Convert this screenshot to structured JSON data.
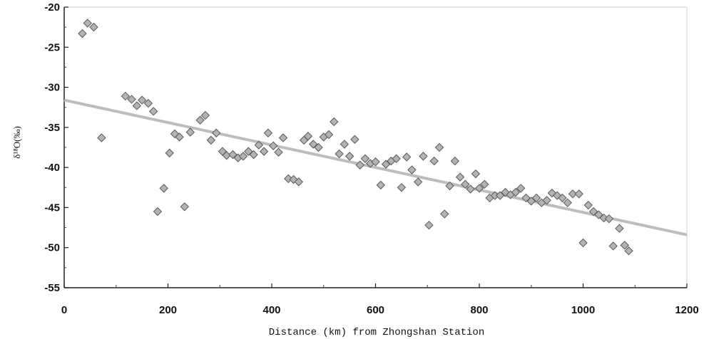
{
  "chart_data": {
    "type": "scatter",
    "title": "",
    "xlabel": "Distance (km) from Zhongshan Station",
    "ylabel": "δ¹⁸O(‰)",
    "xlim": [
      0,
      1200
    ],
    "ylim": [
      -55,
      -20
    ],
    "x_ticks": [
      "0",
      "200",
      "400",
      "600",
      "800",
      "1000",
      "1200"
    ],
    "y_ticks": [
      "-20",
      "-25",
      "-30",
      "-35",
      "-40",
      "-45",
      "-50",
      "-55"
    ],
    "grid": false,
    "legend": "none",
    "colors": {
      "marker_fill": "#b3b3b3",
      "marker_stroke": "#5a5a5a",
      "trendline": "#bdbdbd"
    },
    "trendline": {
      "x": [
        0,
        1200
      ],
      "y": [
        -31.6,
        -48.4
      ]
    },
    "points": [
      {
        "x": 35,
        "y": -23.3
      },
      {
        "x": 45,
        "y": -22.0
      },
      {
        "x": 57,
        "y": -22.5
      },
      {
        "x": 72,
        "y": -36.3
      },
      {
        "x": 118,
        "y": -31.1
      },
      {
        "x": 130,
        "y": -31.5
      },
      {
        "x": 140,
        "y": -32.3
      },
      {
        "x": 150,
        "y": -31.6
      },
      {
        "x": 162,
        "y": -32.0
      },
      {
        "x": 172,
        "y": -33.0
      },
      {
        "x": 180,
        "y": -45.5
      },
      {
        "x": 192,
        "y": -42.6
      },
      {
        "x": 203,
        "y": -38.2
      },
      {
        "x": 213,
        "y": -35.8
      },
      {
        "x": 222,
        "y": -36.2
      },
      {
        "x": 232,
        "y": -44.9
      },
      {
        "x": 243,
        "y": -35.6
      },
      {
        "x": 262,
        "y": -34.1
      },
      {
        "x": 272,
        "y": -33.5
      },
      {
        "x": 283,
        "y": -36.6
      },
      {
        "x": 293,
        "y": -35.7
      },
      {
        "x": 305,
        "y": -38.0
      },
      {
        "x": 313,
        "y": -38.5
      },
      {
        "x": 325,
        "y": -38.4
      },
      {
        "x": 335,
        "y": -38.8
      },
      {
        "x": 345,
        "y": -38.6
      },
      {
        "x": 355,
        "y": -38.0
      },
      {
        "x": 365,
        "y": -38.4
      },
      {
        "x": 375,
        "y": -37.2
      },
      {
        "x": 385,
        "y": -38.0
      },
      {
        "x": 393,
        "y": -35.7
      },
      {
        "x": 403,
        "y": -37.3
      },
      {
        "x": 413,
        "y": -38.1
      },
      {
        "x": 422,
        "y": -36.3
      },
      {
        "x": 432,
        "y": -41.4
      },
      {
        "x": 442,
        "y": -41.5
      },
      {
        "x": 452,
        "y": -41.8
      },
      {
        "x": 462,
        "y": -36.6
      },
      {
        "x": 470,
        "y": -36.1
      },
      {
        "x": 480,
        "y": -37.1
      },
      {
        "x": 490,
        "y": -37.5
      },
      {
        "x": 500,
        "y": -36.2
      },
      {
        "x": 510,
        "y": -35.9
      },
      {
        "x": 520,
        "y": -34.3
      },
      {
        "x": 530,
        "y": -38.3
      },
      {
        "x": 540,
        "y": -37.1
      },
      {
        "x": 550,
        "y": -38.6
      },
      {
        "x": 560,
        "y": -36.5
      },
      {
        "x": 570,
        "y": -39.7
      },
      {
        "x": 580,
        "y": -38.9
      },
      {
        "x": 590,
        "y": -39.5
      },
      {
        "x": 600,
        "y": -39.3
      },
      {
        "x": 610,
        "y": -42.2
      },
      {
        "x": 620,
        "y": -39.6
      },
      {
        "x": 630,
        "y": -39.2
      },
      {
        "x": 640,
        "y": -38.9
      },
      {
        "x": 650,
        "y": -42.5
      },
      {
        "x": 660,
        "y": -38.7
      },
      {
        "x": 670,
        "y": -40.3
      },
      {
        "x": 682,
        "y": -41.8
      },
      {
        "x": 692,
        "y": -38.6
      },
      {
        "x": 703,
        "y": -47.2
      },
      {
        "x": 713,
        "y": -39.2
      },
      {
        "x": 723,
        "y": -37.5
      },
      {
        "x": 733,
        "y": -45.8
      },
      {
        "x": 743,
        "y": -42.3
      },
      {
        "x": 753,
        "y": -39.2
      },
      {
        "x": 763,
        "y": -41.2
      },
      {
        "x": 773,
        "y": -42.1
      },
      {
        "x": 783,
        "y": -42.7
      },
      {
        "x": 793,
        "y": -40.8
      },
      {
        "x": 800,
        "y": -42.6
      },
      {
        "x": 810,
        "y": -42.1
      },
      {
        "x": 820,
        "y": -43.8
      },
      {
        "x": 830,
        "y": -43.5
      },
      {
        "x": 840,
        "y": -43.5
      },
      {
        "x": 850,
        "y": -43.1
      },
      {
        "x": 860,
        "y": -43.4
      },
      {
        "x": 870,
        "y": -43.1
      },
      {
        "x": 880,
        "y": -42.6
      },
      {
        "x": 890,
        "y": -43.8
      },
      {
        "x": 900,
        "y": -44.2
      },
      {
        "x": 910,
        "y": -43.8
      },
      {
        "x": 920,
        "y": -44.4
      },
      {
        "x": 930,
        "y": -44.1
      },
      {
        "x": 940,
        "y": -43.2
      },
      {
        "x": 950,
        "y": -43.5
      },
      {
        "x": 960,
        "y": -43.8
      },
      {
        "x": 970,
        "y": -44.4
      },
      {
        "x": 980,
        "y": -43.3
      },
      {
        "x": 992,
        "y": -43.3
      },
      {
        "x": 1000,
        "y": -49.4
      },
      {
        "x": 1010,
        "y": -44.7
      },
      {
        "x": 1020,
        "y": -45.5
      },
      {
        "x": 1030,
        "y": -45.9
      },
      {
        "x": 1040,
        "y": -46.3
      },
      {
        "x": 1050,
        "y": -46.4
      },
      {
        "x": 1058,
        "y": -49.8
      },
      {
        "x": 1070,
        "y": -47.6
      },
      {
        "x": 1080,
        "y": -49.7
      },
      {
        "x": 1088,
        "y": -50.4
      }
    ]
  }
}
